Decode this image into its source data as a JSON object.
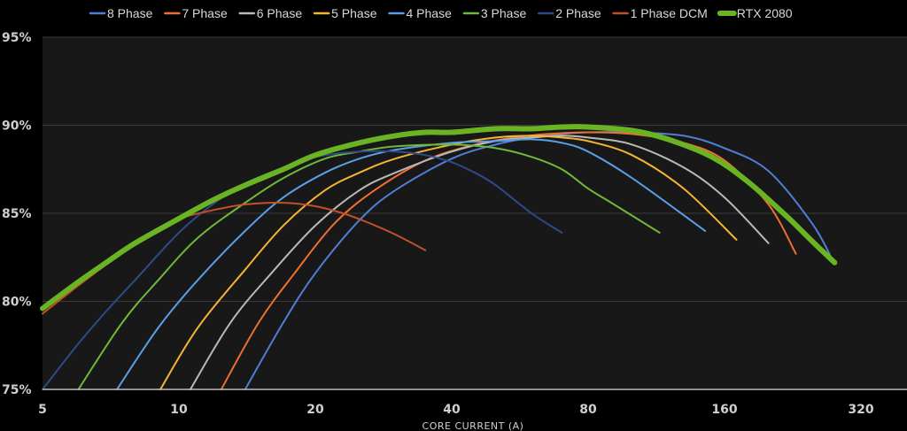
{
  "chart_data": {
    "type": "line",
    "title": "",
    "xlabel": "CORE CURRENT (A)",
    "ylabel": "",
    "x_scale": "log2",
    "xlim": [
      5,
      400
    ],
    "ylim": [
      75,
      95
    ],
    "x_ticks": [
      5,
      10,
      20,
      40,
      80,
      160,
      320
    ],
    "x_tick_labels": [
      "5",
      "10",
      "20",
      "40",
      "80",
      "160",
      "320"
    ],
    "y_ticks": [
      75,
      80,
      85,
      90,
      95
    ],
    "y_tick_labels": [
      "75%",
      "80%",
      "85%",
      "90%",
      "95%"
    ],
    "grid": "horizontal",
    "legend_position": "top",
    "series": [
      {
        "name": "8 Phase",
        "color": "#4f7ed6",
        "width": 2,
        "x": [
          14,
          17,
          20,
          25,
          30,
          40,
          50,
          60,
          70,
          80,
          100,
          130,
          160,
          200,
          250,
          280
        ],
        "y": [
          75,
          78.8,
          81.6,
          84.6,
          86.3,
          88.1,
          88.9,
          89.3,
          89.5,
          89.6,
          89.6,
          89.4,
          88.7,
          87.4,
          84.4,
          82.1
        ]
      },
      {
        "name": "7 Phase",
        "color": "#ef6f33",
        "width": 2,
        "x": [
          12.4,
          15,
          18,
          22,
          27,
          35,
          45,
          55,
          65,
          80,
          100,
          130,
          160,
          200,
          230
        ],
        "y": [
          75,
          78.8,
          81.6,
          84.4,
          86.3,
          88,
          88.9,
          89.3,
          89.5,
          89.6,
          89.5,
          89,
          88,
          85.5,
          82.7
        ]
      },
      {
        "name": "6 Phase",
        "color": "#b9b9b9",
        "width": 2,
        "x": [
          10.6,
          13,
          16,
          20,
          25,
          30,
          40,
          50,
          60,
          70,
          80,
          100,
          130,
          160,
          200
        ],
        "y": [
          75,
          78.8,
          81.6,
          84.3,
          86.3,
          87.3,
          88.5,
          89.1,
          89.3,
          89.4,
          89.3,
          88.9,
          87.6,
          85.9,
          83.3
        ]
      },
      {
        "name": "5 Phase",
        "color": "#f4b533",
        "width": 2,
        "x": [
          9.1,
          11,
          14,
          17,
          21,
          25,
          30,
          40,
          50,
          60,
          70,
          80,
          100,
          130,
          170
        ],
        "y": [
          75,
          78.5,
          81.8,
          84.3,
          86.3,
          87.3,
          88.1,
          88.9,
          89.3,
          89.4,
          89.3,
          89.1,
          88.3,
          86.4,
          83.5
        ]
      },
      {
        "name": "4 Phase",
        "color": "#5a9ee6",
        "width": 2,
        "x": [
          7.3,
          9,
          11,
          14,
          17,
          21,
          25,
          30,
          40,
          50,
          60,
          70,
          80,
          100,
          145
        ],
        "y": [
          75,
          78.5,
          81.2,
          84,
          85.9,
          87.3,
          88.1,
          88.6,
          89,
          89.1,
          89.2,
          89,
          88.5,
          87,
          84
        ]
      },
      {
        "name": "3 Phase",
        "color": "#6fb83a",
        "width": 2,
        "x": [
          6,
          7.5,
          9,
          11,
          14,
          17,
          21,
          25,
          30,
          40,
          50,
          60,
          70,
          80,
          90,
          115
        ],
        "y": [
          75,
          78.8,
          81.2,
          83.6,
          85.6,
          87,
          88.1,
          88.5,
          88.8,
          88.9,
          88.7,
          88.2,
          87.5,
          86.4,
          85.6,
          83.9
        ]
      },
      {
        "name": "2 Phase",
        "color": "#2f4a8a",
        "width": 2,
        "x": [
          5,
          6,
          7,
          8,
          10,
          12,
          14,
          17,
          20,
          25,
          30,
          35,
          40,
          45,
          50,
          60,
          70
        ],
        "y": [
          75,
          77.6,
          79.6,
          81.2,
          83.9,
          85.6,
          86.7,
          87.6,
          88.2,
          88.5,
          88.5,
          88.3,
          87.9,
          87.3,
          86.6,
          85,
          83.9
        ]
      },
      {
        "name": "1 Phase DCM",
        "color": "#c0512a",
        "width": 2,
        "x": [
          5,
          6,
          7,
          8,
          9,
          10,
          12,
          14,
          17,
          20,
          23,
          26,
          30,
          35
        ],
        "y": [
          79.3,
          80.9,
          82.2,
          83.3,
          84.1,
          84.7,
          85.2,
          85.5,
          85.6,
          85.4,
          85,
          84.5,
          83.8,
          82.9
        ]
      },
      {
        "name": "RTX 2080",
        "color": "#6ab423",
        "width": 6,
        "x": [
          5,
          6,
          7,
          8,
          10,
          12,
          14,
          17,
          20,
          25,
          30,
          35,
          40,
          50,
          60,
          70,
          80,
          100,
          120,
          150,
          180,
          220,
          250,
          280
        ],
        "y": [
          79.6,
          81.1,
          82.3,
          83.3,
          84.7,
          85.8,
          86.6,
          87.5,
          88.3,
          89,
          89.4,
          89.6,
          89.6,
          89.8,
          89.8,
          89.9,
          89.9,
          89.7,
          89.2,
          88.2,
          86.8,
          84.8,
          83.4,
          82.2
        ]
      }
    ]
  }
}
